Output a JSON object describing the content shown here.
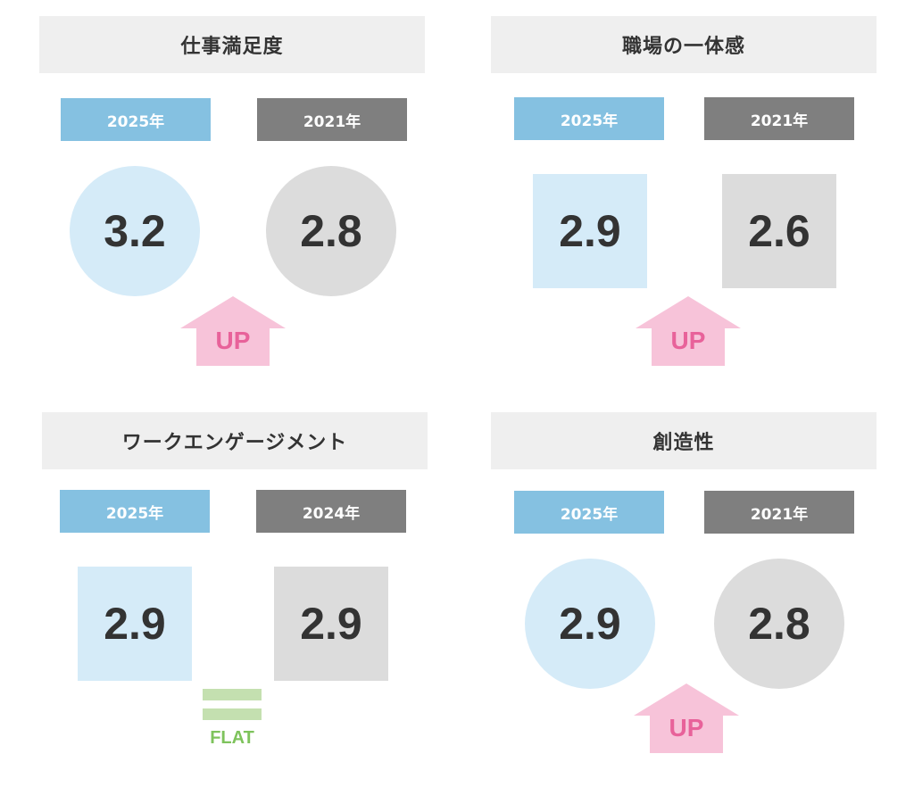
{
  "panels": [
    {
      "title": "仕事満足度",
      "year_current": "2025年",
      "year_past": "2021年",
      "score_current": "3.2",
      "score_past": "2.8",
      "shape": "circle",
      "trend": "UP"
    },
    {
      "title": "職場の一体感",
      "year_current": "2025年",
      "year_past": "2021年",
      "score_current": "2.9",
      "score_past": "2.6",
      "shape": "square",
      "trend": "UP"
    },
    {
      "title": "ワークエンゲージメント",
      "year_current": "2025年",
      "year_past": "2024年",
      "score_current": "2.9",
      "score_past": "2.9",
      "shape": "square",
      "trend": "FLAT"
    },
    {
      "title": "創造性",
      "year_current": "2025年",
      "year_past": "2021年",
      "score_current": "2.9",
      "score_past": "2.8",
      "shape": "circle",
      "trend": "UP"
    }
  ],
  "colors": {
    "current_badge": "#85c1e1",
    "past_badge": "#7f7f7f",
    "current_fill": "#d5ebf8",
    "past_fill": "#dcdcdc",
    "up_arrow": "#f7c3d9",
    "up_text": "#e8629a",
    "flat_bar": "#c4e0b0",
    "flat_text": "#7ec35c"
  },
  "icons": {
    "up": "up-arrow-icon",
    "flat": "equals-icon"
  }
}
